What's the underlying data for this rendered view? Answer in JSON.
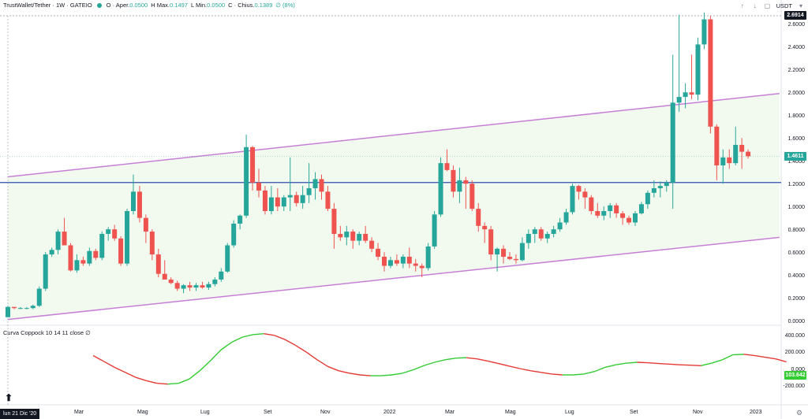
{
  "header": {
    "symbol": "TrustWallet/Tether · 1W · GATEIO",
    "ohlc": {
      "o_label": "O",
      "o_word": "Aper.",
      "o": "0.0500",
      "h_label": "H",
      "h_word": "Max.",
      "h": "0.1497",
      "l_label": "L",
      "l_word": "Min.",
      "l": "0.0500",
      "c_label": "C",
      "c_word": "Chius.",
      "c": "0.1389",
      "change": "∅ (8%)"
    },
    "currency": "USDT"
  },
  "indicator": {
    "label": "Curva Coppock 10 14 11 close",
    "value": "∅"
  },
  "price_axis": {
    "labels": [
      "2.6000",
      "2.4000",
      "2.2000",
      "2.0000",
      "1.8000",
      "1.6000",
      "1.4000",
      "1.2000",
      "1.0000",
      "0.8000",
      "0.6000",
      "0.4000",
      "0.2000",
      "0.0000"
    ],
    "current_high": "2.6914",
    "current": "1.4611"
  },
  "indicator_axis": {
    "labels": [
      "400.000",
      "200.000",
      "0.000",
      "-200.000"
    ],
    "current": "103.642"
  },
  "time_axis": {
    "labels": [
      "Mar",
      "Mag",
      "Lug",
      "Set",
      "Nov",
      "2022",
      "Mar",
      "Mag",
      "Lug",
      "Set",
      "Nov",
      "2023"
    ],
    "cursor_date": "lun 21 Dic '20"
  },
  "colors": {
    "up": "#26a69a",
    "down": "#ef5350",
    "channel": "#c77fd6",
    "hline": "#2a4fb0",
    "coppock_up": "#33cc33",
    "coppock_down": "#e53935"
  },
  "chart_data": {
    "type": "candlestick",
    "horizontal_line": 1.23,
    "channel": {
      "upper": [
        [
          0,
          1.28
        ],
        [
          123,
          2.01
        ]
      ],
      "lower": [
        [
          0,
          0.03
        ],
        [
          123,
          0.75
        ]
      ]
    },
    "candles": [
      [
        0.05,
        0.15,
        0.05,
        0.14
      ],
      [
        0.14,
        0.14,
        0.12,
        0.13
      ],
      [
        0.13,
        0.14,
        0.12,
        0.13
      ],
      [
        0.13,
        0.14,
        0.12,
        0.13
      ],
      [
        0.13,
        0.16,
        0.12,
        0.15
      ],
      [
        0.15,
        0.32,
        0.14,
        0.3
      ],
      [
        0.3,
        0.62,
        0.28,
        0.6
      ],
      [
        0.6,
        0.66,
        0.58,
        0.64
      ],
      [
        0.64,
        0.82,
        0.6,
        0.8
      ],
      [
        0.8,
        0.92,
        0.7,
        0.68
      ],
      [
        0.68,
        0.7,
        0.45,
        0.46
      ],
      [
        0.46,
        0.6,
        0.44,
        0.55
      ],
      [
        0.55,
        0.58,
        0.5,
        0.52
      ],
      [
        0.52,
        0.66,
        0.5,
        0.63
      ],
      [
        0.63,
        0.65,
        0.55,
        0.57
      ],
      [
        0.57,
        0.8,
        0.55,
        0.78
      ],
      [
        0.78,
        0.84,
        0.72,
        0.82
      ],
      [
        0.82,
        0.86,
        0.72,
        0.74
      ],
      [
        0.74,
        0.76,
        0.5,
        0.52
      ],
      [
        0.52,
        1.0,
        0.5,
        0.98
      ],
      [
        0.98,
        1.3,
        0.95,
        1.15
      ],
      [
        1.15,
        1.2,
        0.88,
        0.92
      ],
      [
        0.92,
        0.95,
        0.7,
        0.8
      ],
      [
        0.8,
        0.82,
        0.55,
        0.6
      ],
      [
        0.6,
        0.65,
        0.4,
        0.43
      ],
      [
        0.43,
        0.55,
        0.38,
        0.38
      ],
      [
        0.38,
        0.4,
        0.34,
        0.35
      ],
      [
        0.35,
        0.37,
        0.28,
        0.3
      ],
      [
        0.3,
        0.34,
        0.26,
        0.33
      ],
      [
        0.33,
        0.36,
        0.28,
        0.31
      ],
      [
        0.31,
        0.35,
        0.28,
        0.33
      ],
      [
        0.33,
        0.36,
        0.3,
        0.31
      ],
      [
        0.31,
        0.36,
        0.29,
        0.34
      ],
      [
        0.34,
        0.4,
        0.32,
        0.38
      ],
      [
        0.38,
        0.48,
        0.36,
        0.45
      ],
      [
        0.45,
        0.7,
        0.44,
        0.68
      ],
      [
        0.68,
        0.9,
        0.66,
        0.87
      ],
      [
        0.87,
        0.95,
        0.82,
        0.94
      ],
      [
        0.94,
        1.65,
        0.92,
        1.54
      ],
      [
        1.54,
        1.55,
        1.16,
        1.23
      ],
      [
        1.23,
        1.35,
        1.1,
        1.16
      ],
      [
        1.16,
        1.2,
        0.95,
        0.98
      ],
      [
        0.98,
        1.2,
        0.95,
        1.1
      ],
      [
        1.1,
        1.18,
        0.98,
        1.02
      ],
      [
        1.02,
        1.12,
        0.98,
        1.1
      ],
      [
        1.1,
        1.45,
        0.98,
        1.12
      ],
      [
        1.12,
        1.15,
        1.02,
        1.05
      ],
      [
        1.05,
        1.2,
        1.0,
        1.12
      ],
      [
        1.12,
        1.4,
        1.05,
        1.18
      ],
      [
        1.18,
        1.32,
        1.08,
        1.26
      ],
      [
        1.26,
        1.3,
        1.08,
        1.15
      ],
      [
        1.15,
        1.2,
        0.98,
        1.0
      ],
      [
        1.0,
        1.05,
        0.65,
        0.78
      ],
      [
        0.78,
        0.85,
        0.72,
        0.75
      ],
      [
        0.75,
        0.85,
        0.68,
        0.8
      ],
      [
        0.8,
        0.82,
        0.65,
        0.72
      ],
      [
        0.72,
        0.8,
        0.68,
        0.78
      ],
      [
        0.78,
        0.85,
        0.7,
        0.72
      ],
      [
        0.72,
        0.75,
        0.62,
        0.65
      ],
      [
        0.65,
        0.7,
        0.55,
        0.58
      ],
      [
        0.58,
        0.62,
        0.45,
        0.5
      ],
      [
        0.5,
        0.58,
        0.48,
        0.55
      ],
      [
        0.55,
        0.6,
        0.5,
        0.52
      ],
      [
        0.52,
        0.6,
        0.48,
        0.58
      ],
      [
        0.58,
        0.66,
        0.48,
        0.52
      ],
      [
        0.52,
        0.56,
        0.45,
        0.5
      ],
      [
        0.5,
        0.52,
        0.4,
        0.48
      ],
      [
        0.48,
        0.7,
        0.46,
        0.67
      ],
      [
        0.67,
        0.98,
        0.65,
        0.95
      ],
      [
        0.95,
        1.45,
        0.93,
        1.4
      ],
      [
        1.4,
        1.52,
        1.33,
        1.34
      ],
      [
        1.34,
        1.38,
        1.1,
        1.15
      ],
      [
        1.15,
        1.36,
        1.05,
        1.25
      ],
      [
        1.25,
        1.28,
        1.0,
        1.22
      ],
      [
        1.22,
        1.25,
        0.98,
        1.0
      ],
      [
        1.0,
        1.05,
        0.8,
        0.85
      ],
      [
        0.85,
        0.88,
        0.7,
        0.82
      ],
      [
        0.82,
        0.85,
        0.55,
        0.6
      ],
      [
        0.6,
        0.66,
        0.45,
        0.65
      ],
      [
        0.65,
        0.68,
        0.52,
        0.58
      ],
      [
        0.58,
        0.62,
        0.55,
        0.56
      ],
      [
        0.56,
        0.6,
        0.52,
        0.55
      ],
      [
        0.55,
        0.75,
        0.54,
        0.7
      ],
      [
        0.7,
        0.82,
        0.65,
        0.78
      ],
      [
        0.78,
        0.84,
        0.7,
        0.82
      ],
      [
        0.82,
        0.84,
        0.72,
        0.74
      ],
      [
        0.74,
        0.8,
        0.7,
        0.78
      ],
      [
        0.78,
        0.85,
        0.75,
        0.82
      ],
      [
        0.82,
        0.92,
        0.8,
        0.88
      ],
      [
        0.88,
        1.0,
        0.86,
        0.97
      ],
      [
        0.97,
        1.22,
        0.95,
        1.2
      ],
      [
        1.2,
        1.21,
        1.08,
        1.15
      ],
      [
        1.15,
        1.18,
        1.0,
        1.1
      ],
      [
        1.1,
        1.12,
        0.95,
        0.98
      ],
      [
        0.98,
        1.05,
        0.92,
        0.94
      ],
      [
        0.94,
        1.02,
        0.9,
        0.98
      ],
      [
        0.98,
        1.05,
        0.92,
        1.03
      ],
      [
        1.03,
        1.05,
        0.92,
        0.96
      ],
      [
        0.96,
        0.98,
        0.86,
        0.92
      ],
      [
        0.92,
        0.94,
        0.86,
        0.88
      ],
      [
        0.88,
        0.98,
        0.85,
        0.96
      ],
      [
        0.96,
        1.06,
        0.95,
        1.04
      ],
      [
        1.04,
        1.16,
        1.0,
        1.14
      ],
      [
        1.14,
        1.25,
        1.1,
        1.18
      ],
      [
        1.18,
        1.24,
        1.1,
        1.2
      ],
      [
        1.2,
        1.25,
        1.15,
        1.23
      ],
      [
        1.23,
        2.35,
        1.0,
        1.93
      ],
      [
        1.93,
        2.7,
        1.85,
        1.98
      ],
      [
        1.98,
        2.1,
        1.88,
        2.02
      ],
      [
        2.02,
        2.35,
        1.96,
        2.0
      ],
      [
        2.0,
        2.5,
        1.95,
        2.44
      ],
      [
        2.44,
        2.72,
        2.4,
        2.66
      ],
      [
        2.66,
        2.69,
        1.66,
        1.72
      ],
      [
        1.72,
        1.74,
        1.25,
        1.38
      ],
      [
        1.38,
        1.52,
        1.22,
        1.45
      ],
      [
        1.45,
        1.52,
        1.35,
        1.4
      ],
      [
        1.4,
        1.72,
        1.38,
        1.56
      ],
      [
        1.56,
        1.62,
        1.35,
        1.5
      ],
      [
        1.5,
        1.52,
        1.44,
        1.46
      ]
    ],
    "coppock": [
      [
        16,
        180
      ],
      [
        18,
        110
      ],
      [
        20,
        40
      ],
      [
        22,
        -20
      ],
      [
        24,
        -80
      ],
      [
        26,
        -120
      ],
      [
        28,
        -150
      ],
      [
        30,
        -160
      ],
      [
        32,
        -150
      ],
      [
        34,
        -100
      ],
      [
        36,
        0
      ],
      [
        38,
        120
      ],
      [
        40,
        250
      ],
      [
        42,
        340
      ],
      [
        44,
        400
      ],
      [
        46,
        430
      ],
      [
        48,
        440
      ],
      [
        50,
        420
      ],
      [
        52,
        370
      ],
      [
        54,
        300
      ],
      [
        56,
        220
      ],
      [
        58,
        130
      ],
      [
        60,
        50
      ],
      [
        62,
        0
      ],
      [
        64,
        -30
      ],
      [
        66,
        -50
      ],
      [
        68,
        -60
      ],
      [
        70,
        -60
      ],
      [
        72,
        -50
      ],
      [
        74,
        -30
      ],
      [
        76,
        10
      ],
      [
        78,
        60
      ],
      [
        80,
        100
      ],
      [
        82,
        130
      ],
      [
        84,
        150
      ],
      [
        86,
        155
      ],
      [
        88,
        140
      ],
      [
        90,
        115
      ],
      [
        92,
        85
      ],
      [
        94,
        55
      ],
      [
        96,
        25
      ],
      [
        98,
        0
      ],
      [
        100,
        -20
      ],
      [
        102,
        -40
      ],
      [
        104,
        -50
      ],
      [
        106,
        -50
      ],
      [
        108,
        -40
      ],
      [
        110,
        -10
      ],
      [
        112,
        40
      ],
      [
        114,
        70
      ],
      [
        116,
        90
      ],
      [
        118,
        100
      ],
      [
        120,
        95
      ],
      [
        122,
        85
      ],
      [
        124,
        78
      ],
      [
        126,
        70
      ],
      [
        128,
        65
      ],
      [
        130,
        60
      ],
      [
        132,
        90
      ],
      [
        134,
        130
      ],
      [
        136,
        190
      ],
      [
        138,
        195
      ],
      [
        140,
        180
      ],
      [
        142,
        160
      ],
      [
        144,
        140
      ],
      [
        146,
        105
      ]
    ]
  }
}
